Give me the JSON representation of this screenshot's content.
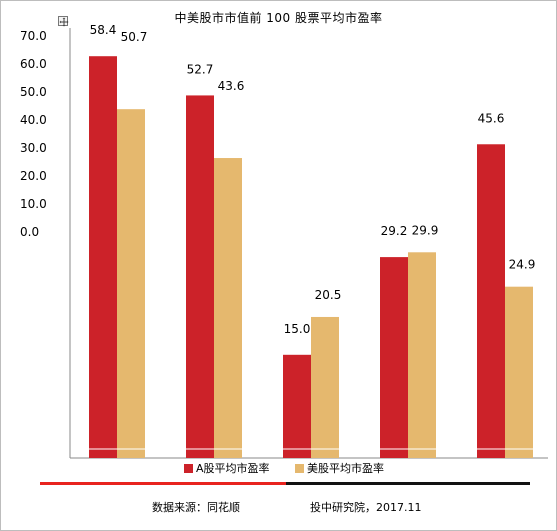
{
  "chart_data": {
    "type": "bar",
    "title": "中美股市市值前 100 股票平均市盈率",
    "categories": [
      "",
      "",
      "",
      "",
      ""
    ],
    "series": [
      {
        "name": "A股平均市盈率",
        "values": [
          58.4,
          52.7,
          15.0,
          29.2,
          45.6
        ],
        "color": "#cc2229"
      },
      {
        "name": "美股平均市盈率",
        "values": [
          50.7,
          43.6,
          20.5,
          29.9,
          24.9
        ],
        "color": "#e5b86e"
      }
    ],
    "data_labels": [
      [
        "58.4",
        "52.7",
        "15.0",
        "29.2",
        "45.6"
      ],
      [
        "50.7",
        "43.6",
        "20.5",
        "29.9",
        "24.9"
      ]
    ],
    "y_ticks": [
      "70.0",
      "60.0",
      "50.0",
      "40.0",
      "30.0",
      "20.0",
      "10.0",
      "0.0"
    ],
    "legend_position": "bottom"
  },
  "footer": {
    "source": "数据来源：同花顺",
    "institute": "投中研究院，2017.11"
  },
  "colors": {
    "rule_red": "#e8231f",
    "rule_black": "#111111"
  }
}
